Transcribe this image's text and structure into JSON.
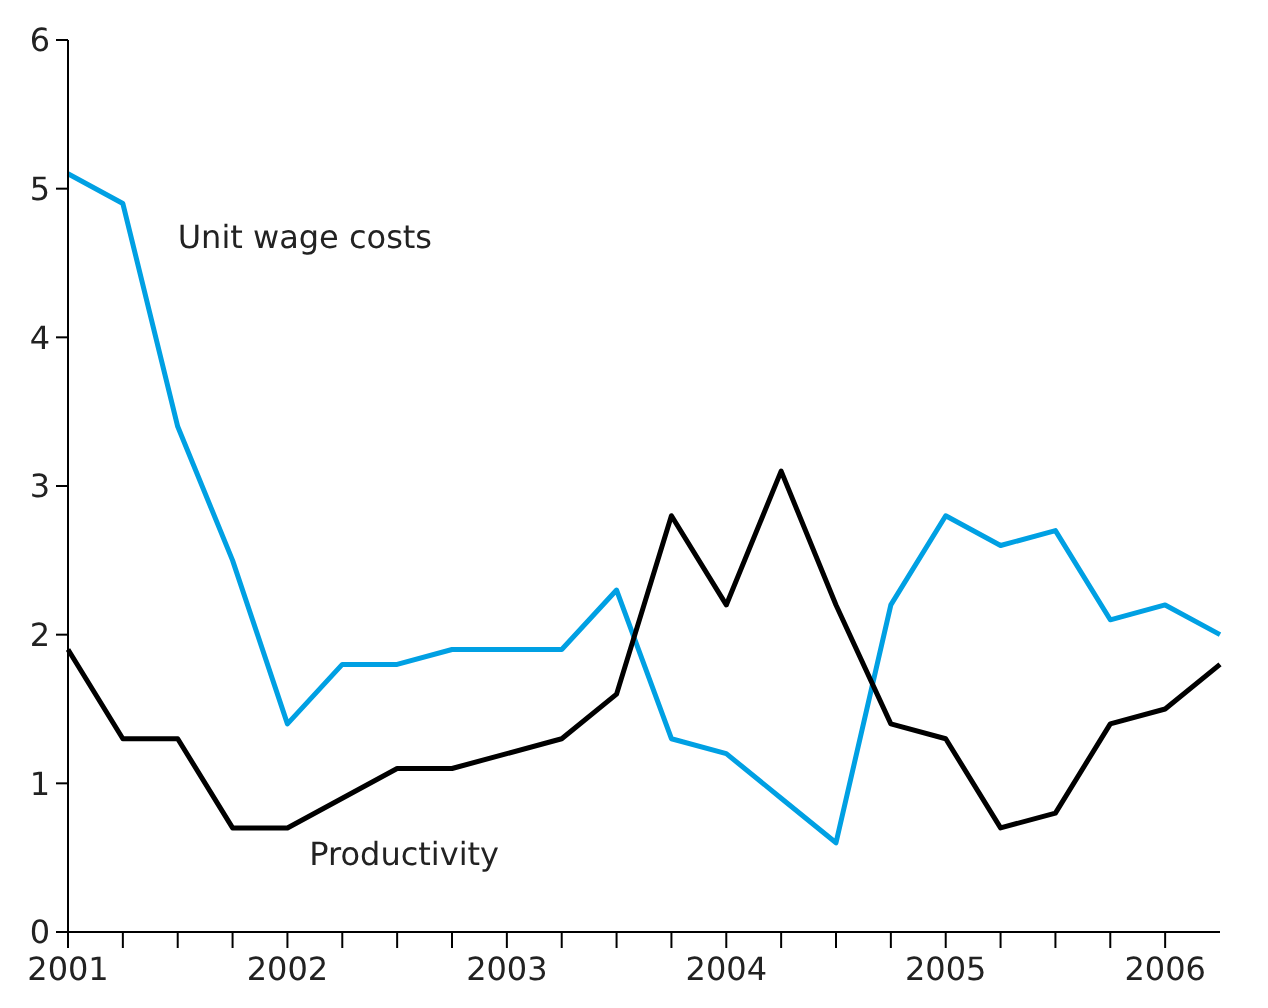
{
  "chart_data": {
    "type": "line",
    "x": [
      2001,
      2001.25,
      2001.5,
      2001.75,
      2002,
      2002.25,
      2002.5,
      2002.75,
      2003,
      2003.25,
      2003.5,
      2003.75,
      2004,
      2004.25,
      2004.5,
      2004.75,
      2005,
      2005.25,
      2005.5,
      2005.75,
      2006,
      2006.25
    ],
    "series": [
      {
        "name": "Unit wage costs",
        "color": "#00a0e3",
        "values": [
          5.1,
          4.9,
          3.4,
          2.5,
          1.4,
          1.8,
          1.8,
          1.9,
          1.9,
          1.9,
          2.3,
          1.3,
          1.2,
          0.9,
          0.6,
          2.2,
          2.8,
          2.6,
          2.7,
          2.1,
          2.2,
          2.0
        ]
      },
      {
        "name": "Productivity",
        "color": "#000000",
        "values": [
          1.9,
          1.3,
          1.3,
          0.7,
          0.7,
          0.9,
          1.1,
          1.1,
          1.2,
          1.3,
          1.6,
          2.8,
          2.2,
          3.1,
          2.2,
          1.4,
          1.3,
          0.7,
          0.8,
          1.4,
          1.5,
          1.8
        ]
      }
    ],
    "xlim": [
      2001,
      2006.25
    ],
    "xticks": [
      2001,
      {
        "value": 2001.25,
        "label": null
      },
      {
        "value": 2001.5,
        "label": null
      },
      {
        "value": 2001.75,
        "label": null
      },
      2002,
      {
        "value": 2002.25,
        "label": null
      },
      {
        "value": 2002.5,
        "label": null
      },
      {
        "value": 2002.75,
        "label": null
      },
      2003,
      {
        "value": 2003.25,
        "label": null
      },
      {
        "value": 2003.5,
        "label": null
      },
      {
        "value": 2003.75,
        "label": null
      },
      2004,
      {
        "value": 2004.25,
        "label": null
      },
      {
        "value": 2004.5,
        "label": null
      },
      {
        "value": 2004.75,
        "label": null
      },
      2005,
      {
        "value": 2005.25,
        "label": null
      },
      {
        "value": 2005.5,
        "label": null
      },
      {
        "value": 2005.75,
        "label": null
      },
      2006
    ],
    "ylim": [
      0,
      6
    ],
    "yticks": [
      0,
      1,
      2,
      3,
      4,
      5,
      6
    ],
    "grid": false,
    "legend": false,
    "marker": "none",
    "line_style": "solid"
  }
}
